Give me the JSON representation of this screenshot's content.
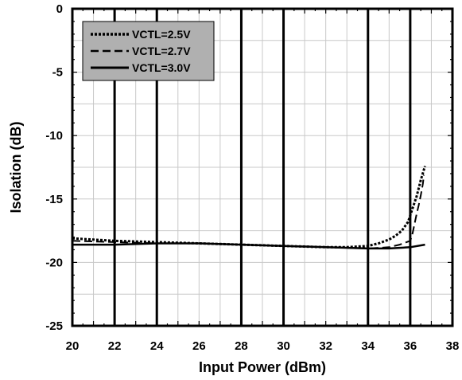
{
  "chart_data": {
    "type": "line",
    "xlabel": "Input Power (dBm)",
    "ylabel": "Isolation (dB)",
    "xlim": [
      20,
      38
    ],
    "ylim": [
      -25,
      0
    ],
    "xticks": [
      "20",
      "22",
      "24",
      "26",
      "28",
      "30",
      "32",
      "34",
      "36",
      "38"
    ],
    "yticks": [
      "0",
      "-5",
      "-10",
      "-15",
      "-20",
      "-25"
    ],
    "grid": "minor grid lines, heavy vertical lines at 22, 24, 28, 30, 34, 36",
    "legend_position": "top-left",
    "legend_background": "#b0b0b0",
    "series": [
      {
        "name": "VCTL=2.5V",
        "style": "dotted",
        "x": [
          20,
          22,
          24,
          26,
          28,
          30,
          32,
          33,
          34,
          34.5,
          35,
          35.3,
          35.6,
          35.9,
          36.1,
          36.3,
          36.5,
          36.7
        ],
        "y": [
          -18.1,
          -18.3,
          -18.4,
          -18.5,
          -18.6,
          -18.7,
          -18.8,
          -18.8,
          -18.7,
          -18.5,
          -18.2,
          -17.9,
          -17.5,
          -16.8,
          -15.8,
          -14.8,
          -13.5,
          -12.4
        ]
      },
      {
        "name": "VCTL=2.7V",
        "style": "dashed",
        "x": [
          20,
          22,
          24,
          26,
          28,
          30,
          32,
          34,
          35,
          35.5,
          36,
          36.1,
          36.2,
          36.3,
          36.4,
          36.5,
          36.6,
          36.65
        ],
        "y": [
          -18.3,
          -18.4,
          -18.5,
          -18.5,
          -18.6,
          -18.7,
          -18.8,
          -18.9,
          -18.8,
          -18.6,
          -18.3,
          -17.8,
          -17.0,
          -16.2,
          -15.5,
          -14.7,
          -13.8,
          -13.1
        ]
      },
      {
        "name": "VCTL=3.0V",
        "style": "solid",
        "x": [
          20,
          22,
          24,
          26,
          28,
          30,
          32,
          34,
          35,
          36,
          36.7
        ],
        "y": [
          -18.6,
          -18.6,
          -18.5,
          -18.5,
          -18.6,
          -18.7,
          -18.8,
          -18.9,
          -18.9,
          -18.8,
          -18.6
        ]
      }
    ]
  }
}
